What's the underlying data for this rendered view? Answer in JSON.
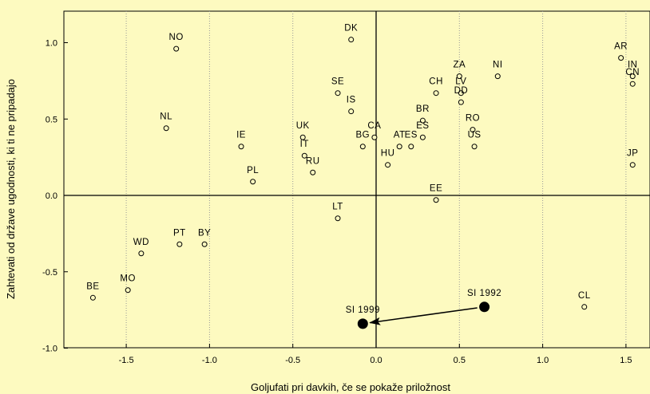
{
  "chart_data": {
    "type": "scatter",
    "xlabel": "Goljufati pri davkih, če se pokaže priložnost",
    "ylabel": "Zahtevati od države ugodnosti, ki ti ne pripadajo",
    "xlim": [
      -1.9,
      1.65
    ],
    "ylim": [
      -1.0,
      1.2
    ],
    "xticks": [
      "-1.5",
      "-1.0",
      "-0.5",
      "0.0",
      "0.5",
      "1.0",
      "1.5"
    ],
    "xtick_values": [
      -1.5,
      -1.0,
      -0.5,
      0.0,
      0.5,
      1.0,
      1.5
    ],
    "yticks": [
      "-1.0",
      "-0.5",
      "0.0",
      "0.5",
      "1.0"
    ],
    "ytick_values": [
      -1.0,
      -0.5,
      0.0,
      0.5,
      1.0
    ],
    "grid": "vertical-dotted",
    "reference_lines": {
      "x": 0.0,
      "y": 0.0
    },
    "points": [
      {
        "label": "NO",
        "x": -1.2,
        "y": 0.96
      },
      {
        "label": "NL",
        "x": -1.26,
        "y": 0.44
      },
      {
        "label": "DK",
        "x": -0.15,
        "y": 1.02
      },
      {
        "label": "SE",
        "x": -0.23,
        "y": 0.67
      },
      {
        "label": "IS",
        "x": -0.15,
        "y": 0.55
      },
      {
        "label": "IE",
        "x": -0.81,
        "y": 0.32
      },
      {
        "label": "UK",
        "x": -0.44,
        "y": 0.38
      },
      {
        "label": "IT",
        "x": -0.43,
        "y": 0.26
      },
      {
        "label": "RU",
        "x": -0.38,
        "y": 0.15
      },
      {
        "label": "PL",
        "x": -0.74,
        "y": 0.09
      },
      {
        "label": "BG",
        "x": -0.08,
        "y": 0.32
      },
      {
        "label": "CA",
        "x": -0.01,
        "y": 0.38
      },
      {
        "label": "HU",
        "x": 0.07,
        "y": 0.2
      },
      {
        "label": "AT",
        "x": 0.14,
        "y": 0.32
      },
      {
        "label": "ES",
        "x": 0.21,
        "y": 0.32
      },
      {
        "label": "BR",
        "x": 0.28,
        "y": 0.49
      },
      {
        "label": "CH",
        "x": 0.36,
        "y": 0.67
      },
      {
        "label": "ES",
        "x": 0.28,
        "y": 0.38
      },
      {
        "label": "ZA",
        "x": 0.5,
        "y": 0.78
      },
      {
        "label": "LV",
        "x": 0.51,
        "y": 0.67
      },
      {
        "label": "DD",
        "x": 0.51,
        "y": 0.61
      },
      {
        "label": "NI",
        "x": 0.73,
        "y": 0.78
      },
      {
        "label": "RO",
        "x": 0.58,
        "y": 0.43
      },
      {
        "label": "US",
        "x": 0.59,
        "y": 0.32
      },
      {
        "label": "EE",
        "x": 0.36,
        "y": -0.03
      },
      {
        "label": "LT",
        "x": -0.23,
        "y": -0.15
      },
      {
        "label": "AR",
        "x": 1.47,
        "y": 0.9
      },
      {
        "label": "IN",
        "x": 1.54,
        "y": 0.78
      },
      {
        "label": "CN",
        "x": 1.54,
        "y": 0.73
      },
      {
        "label": "JP",
        "x": 1.54,
        "y": 0.2
      },
      {
        "label": "WD",
        "x": -1.41,
        "y": -0.38
      },
      {
        "label": "PT",
        "x": -1.18,
        "y": -0.32
      },
      {
        "label": "BY",
        "x": -1.03,
        "y": -0.32
      },
      {
        "label": "MO",
        "x": -1.49,
        "y": -0.62
      },
      {
        "label": "BE",
        "x": -1.7,
        "y": -0.67
      },
      {
        "label": "CL",
        "x": 1.25,
        "y": -0.73
      }
    ],
    "highlight_points": [
      {
        "label": "SI 1992",
        "x": 0.65,
        "y": -0.73
      },
      {
        "label": "SI 1999",
        "x": -0.08,
        "y": -0.84
      }
    ],
    "arrow": {
      "from": "SI 1992",
      "to": "SI 1999"
    }
  }
}
